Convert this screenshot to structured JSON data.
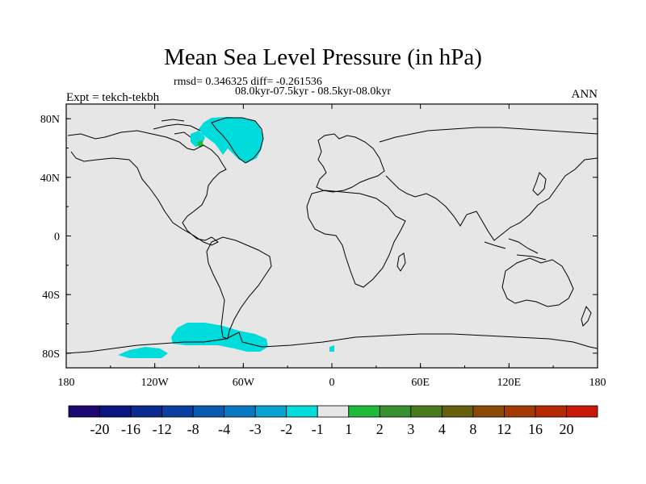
{
  "title": "Mean Sea Level Pressure (in hPa)",
  "stats_line": "rmsd= 0.346325 diff= -0.261536",
  "period_line": "08.0kyr-07.5kyr - 08.5kyr-08.0kyr",
  "experiment_label": "Expt = tekch-tekbh",
  "season_label": "ANN",
  "map": {
    "projection": "cylindrical equidistant",
    "lon_range": [
      -180,
      180
    ],
    "lat_range": [
      -90,
      90
    ],
    "x_tick_labels": [
      "180",
      "120W",
      "60W",
      "0",
      "60E",
      "120E",
      "180"
    ],
    "y_tick_labels": [
      "80N",
      "40N",
      "0",
      "40S",
      "80S"
    ],
    "background_color": "#e6e6e6",
    "anomaly_regions": [
      {
        "name": "Greenland / Canadian Arctic",
        "level": "-3 to -1",
        "color": "#00dcdc"
      },
      {
        "name": "Antarctica (Pacific sector)",
        "level": "-3 to -1",
        "color": "#00dcdc"
      },
      {
        "name": "Hudson Bay patch",
        "level": "1 to 2",
        "color": "#1fba3a"
      }
    ]
  },
  "colorbar": {
    "labels": [
      "-20",
      "-16",
      "-12",
      "-8",
      "-4",
      "-3",
      "-2",
      "-1",
      "1",
      "2",
      "3",
      "4",
      "8",
      "12",
      "16",
      "20"
    ],
    "colors": [
      "#1c0870",
      "#0c1480",
      "#0a2a8f",
      "#0a3fa0",
      "#0a5ab0",
      "#0a78c0",
      "#0aa2d0",
      "#00dcdc",
      "#e6e6e6",
      "#1fba3a",
      "#38902e",
      "#4a7a1e",
      "#665f10",
      "#8a4a08",
      "#a33a06",
      "#b52a04",
      "#c8180a"
    ]
  }
}
